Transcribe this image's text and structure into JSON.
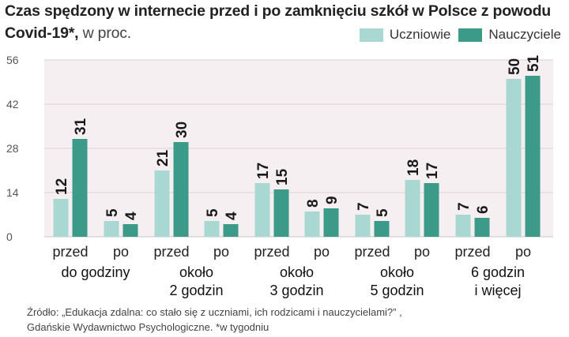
{
  "title_bold": "Czas spędzony w internecie przed i po zamknięciu szkół w Polsce z powodu Covid-19*,",
  "title_light": "w proc.",
  "chart_data": {
    "type": "bar",
    "title": "Czas spędzony w internecie przed i po zamknięciu szkół w Polsce z powodu Covid-19*, w proc.",
    "xlabel": "",
    "ylabel": "",
    "ylim": [
      0,
      56
    ],
    "yticks": [
      "0",
      "14",
      "28",
      "42",
      "56"
    ],
    "colors": {
      "Uczniowie": "#a9d8d2",
      "Nauczyciele": "#3c9a88"
    },
    "groups": [
      {
        "label": [
          "do godziny"
        ],
        "sub": [
          {
            "label": "przed",
            "values": [
              12,
              31
            ]
          },
          {
            "label": "po",
            "values": [
              5,
              4
            ]
          }
        ]
      },
      {
        "label": [
          "około",
          "2 godzin"
        ],
        "sub": [
          {
            "label": "przed",
            "values": [
              21,
              30
            ]
          },
          {
            "label": "po",
            "values": [
              5,
              4
            ]
          }
        ]
      },
      {
        "label": [
          "około",
          "3 godzin"
        ],
        "sub": [
          {
            "label": "przed",
            "values": [
              17,
              15
            ]
          },
          {
            "label": "po",
            "values": [
              8,
              9
            ]
          }
        ]
      },
      {
        "label": [
          "około",
          "5 godzin"
        ],
        "sub": [
          {
            "label": "przed",
            "values": [
              7,
              5
            ]
          },
          {
            "label": "po",
            "values": [
              18,
              17
            ]
          }
        ]
      },
      {
        "label": [
          "6 godzin",
          "i więcej"
        ],
        "sub": [
          {
            "label": "przed",
            "values": [
              7,
              6
            ]
          },
          {
            "label": "po",
            "values": [
              50,
              51
            ]
          }
        ]
      }
    ],
    "series": [
      {
        "name": "Uczniowie",
        "values": [
          12,
          5,
          21,
          5,
          17,
          8,
          7,
          18,
          7,
          50
        ]
      },
      {
        "name": "Nauczyciele",
        "values": [
          31,
          4,
          30,
          4,
          15,
          9,
          5,
          17,
          6,
          51
        ]
      }
    ]
  },
  "legend": [
    {
      "name": "Uczniowie",
      "color": "#a9d8d2"
    },
    {
      "name": "Nauczyciele",
      "color": "#3c9a88"
    }
  ],
  "source_line1": "Źródło: „Edukacja zdalna: co stało się z uczniami, ich rodzicami i nauczycielami?” ,",
  "source_line2": "Gdańskie Wydawnictwo Psychologiczne. *w tygodniu"
}
